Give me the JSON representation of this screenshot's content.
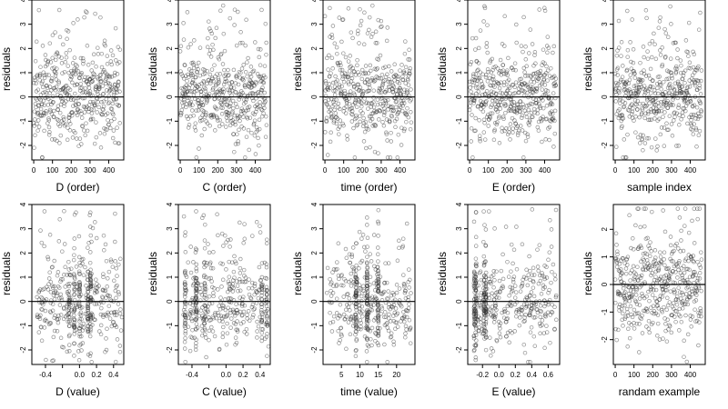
{
  "chart_data": [
    {
      "type": "scatter",
      "xlabel": "D (order)",
      "ylabel": "residuals",
      "xlim": [
        -10,
        480
      ],
      "ylim": [
        -2.6,
        4
      ],
      "xticks": [
        0,
        100,
        200,
        300,
        400
      ],
      "yticks": [
        -2,
        -1,
        0,
        1,
        2,
        3,
        4
      ],
      "hline": 0,
      "x_kind": "order",
      "x_range": [
        0,
        460
      ],
      "n_points": 460,
      "seed": 11
    },
    {
      "type": "scatter",
      "xlabel": "C (order)",
      "ylabel": "residuals",
      "xlim": [
        -10,
        480
      ],
      "ylim": [
        -2.6,
        4
      ],
      "xticks": [
        0,
        100,
        200,
        300,
        400
      ],
      "yticks": [
        -2,
        -1,
        0,
        1,
        2,
        3,
        4
      ],
      "hline": 0,
      "x_kind": "order",
      "x_range": [
        0,
        460
      ],
      "n_points": 460,
      "seed": 23
    },
    {
      "type": "scatter",
      "xlabel": "time (order)",
      "ylabel": "residuals",
      "xlim": [
        -10,
        480
      ],
      "ylim": [
        -2.6,
        4
      ],
      "xticks": [
        0,
        100,
        200,
        300,
        400
      ],
      "yticks": [
        -2,
        -1,
        0,
        1,
        2,
        3,
        4
      ],
      "hline": 0,
      "x_kind": "order",
      "x_range": [
        0,
        460
      ],
      "n_points": 460,
      "seed": 37
    },
    {
      "type": "scatter",
      "xlabel": "E (order)",
      "ylabel": "residuals",
      "xlim": [
        -10,
        480
      ],
      "ylim": [
        -2.6,
        4
      ],
      "xticks": [
        0,
        100,
        200,
        300,
        400
      ],
      "yticks": [
        -2,
        -1,
        0,
        1,
        2,
        3,
        4
      ],
      "hline": 0,
      "x_kind": "order",
      "x_range": [
        0,
        460
      ],
      "n_points": 460,
      "seed": 41
    },
    {
      "type": "scatter",
      "xlabel": "sample index",
      "ylabel": "residuals",
      "xlim": [
        -10,
        480
      ],
      "ylim": [
        -2.6,
        4
      ],
      "xticks": [
        0,
        100,
        200,
        300,
        400
      ],
      "yticks": [
        -2,
        -1,
        0,
        1,
        2,
        3,
        4
      ],
      "hline": 0,
      "x_kind": "order",
      "x_range": [
        0,
        460
      ],
      "n_points": 460,
      "seed": 53
    },
    {
      "type": "scatter",
      "xlabel": "D (value)",
      "ylabel": "residuals",
      "xlim": [
        -0.56,
        0.52
      ],
      "ylim": [
        -2.6,
        4
      ],
      "xticks": [
        -0.4,
        -0.2,
        0.0,
        0.2,
        0.4
      ],
      "xtick_labels": [
        "-0.4",
        "",
        "0.0",
        "0.2",
        "0.4"
      ],
      "yticks": [
        -2,
        -1,
        0,
        1,
        2,
        3,
        4
      ],
      "hline": 0,
      "x_kind": "value",
      "x_range": [
        -0.5,
        0.5
      ],
      "x_clusters": [
        -0.12,
        -0.06,
        0.0,
        0.1,
        0.13
      ],
      "n_points": 460,
      "seed": 67
    },
    {
      "type": "scatter",
      "xlabel": "C (value)",
      "ylabel": "residuals",
      "xlim": [
        -0.56,
        0.52
      ],
      "ylim": [
        -2.6,
        4
      ],
      "xticks": [
        -0.4,
        -0.2,
        0.0,
        0.2,
        0.4
      ],
      "xtick_labels": [
        "-0.4",
        "",
        "0.0",
        "0.2",
        "0.4"
      ],
      "yticks": [
        -2,
        -1,
        0,
        1,
        2,
        3,
        4
      ],
      "hline": 0,
      "x_kind": "value",
      "x_range": [
        -0.5,
        0.5
      ],
      "x_clusters": [
        -0.48,
        -0.35,
        -0.25,
        0.42,
        0.48
      ],
      "n_points": 460,
      "seed": 71
    },
    {
      "type": "scatter",
      "xlabel": "time (value)",
      "ylabel": "residuals",
      "xlim": [
        0,
        25
      ],
      "ylim": [
        -2.6,
        4
      ],
      "xticks": [
        5,
        10,
        15,
        20
      ],
      "yticks": [
        -2,
        -1,
        0,
        1,
        2,
        3,
        4
      ],
      "hline": 0,
      "x_kind": "value",
      "x_range": [
        1,
        24
      ],
      "x_clusters": [
        9,
        12,
        15
      ],
      "n_points": 460,
      "seed": 83
    },
    {
      "type": "scatter",
      "xlabel": "E (value)",
      "ylabel": "residuals",
      "xlim": [
        -0.38,
        0.74
      ],
      "ylim": [
        -2.6,
        4
      ],
      "xticks": [
        -0.2,
        0.0,
        0.2,
        0.4,
        0.6
      ],
      "xtick_labels": [
        "-0.2",
        "0.0",
        "0.2",
        "0.4",
        "0.6"
      ],
      "yticks": [
        -2,
        -1,
        0,
        1,
        2,
        3,
        4
      ],
      "hline": 0,
      "x_kind": "value",
      "x_range": [
        -0.32,
        0.7
      ],
      "x_clusters": [
        -0.3,
        -0.28,
        -0.18,
        -0.16
      ],
      "n_points": 460,
      "seed": 97
    },
    {
      "type": "scatter",
      "xlabel": "randam example",
      "ylabel": "residuals",
      "xlim": [
        -10,
        480
      ],
      "ylim": [
        -2.9,
        2.9
      ],
      "xticks": [
        0,
        100,
        200,
        300,
        400
      ],
      "yticks": [
        -2,
        -1,
        0,
        1,
        2
      ],
      "hline": 0,
      "x_kind": "order",
      "x_range": [
        0,
        460
      ],
      "n_points": 460,
      "seed": 101
    }
  ]
}
